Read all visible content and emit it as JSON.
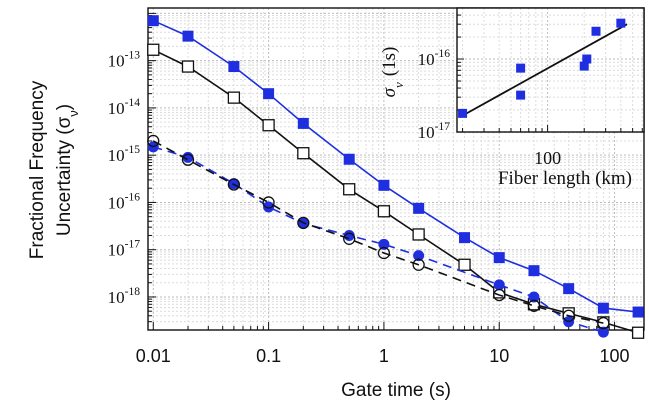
{
  "chart_data": [
    {
      "type": "line",
      "xlabel": "Gate time (s)",
      "ylabel": "Fractional Frequency Uncertainty (σ",
      "ylabel_sub": "ν",
      "ylabel_end": ")",
      "x_scale": "log",
      "y_scale": "log",
      "xlim": [
        0.009,
        180
      ],
      "ylim": [
        2e-19,
        1.3e-12
      ],
      "grid": true,
      "x_ticks": [
        {
          "value": 0.01,
          "label": "0.01"
        },
        {
          "value": 0.1,
          "label": "0.1"
        },
        {
          "value": 1,
          "label": "1"
        },
        {
          "value": 10,
          "label": "10"
        },
        {
          "value": 100,
          "label": "100"
        }
      ],
      "y_ticks": [
        {
          "value": 1e-13,
          "base": "10",
          "exp": "-13"
        },
        {
          "value": 1e-14,
          "base": "10",
          "exp": "-14"
        },
        {
          "value": 1e-15,
          "base": "10",
          "exp": "-15"
        },
        {
          "value": 1e-16,
          "base": "10",
          "exp": "-16"
        },
        {
          "value": 1e-17,
          "base": "10",
          "exp": "-17"
        },
        {
          "value": 1e-18,
          "base": "10",
          "exp": "-18"
        }
      ],
      "series": [
        {
          "color": "#1f2fe0",
          "marker": "filled-square",
          "line": "solid",
          "x": [
            0.01,
            0.02,
            0.05,
            0.1,
            0.2,
            0.5,
            1,
            2,
            5,
            10,
            20,
            40,
            80,
            160
          ],
          "y": [
            7e-13,
            3.3e-13,
            7.5e-14,
            2e-14,
            4.7e-15,
            8.2e-16,
            2.3e-16,
            7.5e-17,
            1.8e-17,
            6.8e-18,
            3.6e-18,
            1.5e-18,
            5.8e-19,
            4.8e-19
          ]
        },
        {
          "color": "#111111",
          "marker": "open-square",
          "line": "solid",
          "x": [
            0.01,
            0.02,
            0.05,
            0.1,
            0.2,
            0.5,
            1,
            2,
            5,
            10,
            20,
            40,
            80,
            160
          ],
          "y": [
            1.7e-13,
            7.5e-14,
            1.65e-14,
            4.3e-15,
            1.1e-15,
            1.9e-16,
            6.5e-17,
            2.1e-17,
            4.8e-18,
            1.25e-18,
            7e-19,
            4.5e-19,
            2.9e-19,
            1.75e-19
          ]
        },
        {
          "color": "#1f2fe0",
          "marker": "filled-circle",
          "line": "dashed",
          "x": [
            0.01,
            0.02,
            0.05,
            0.1,
            0.2,
            0.5,
            1,
            2,
            10,
            20,
            40,
            80
          ],
          "y": [
            1.5e-15,
            9e-16,
            2.5e-16,
            8e-17,
            3.6e-17,
            2e-17,
            1.3e-17,
            7.5e-18,
            1.8e-18,
            1e-18,
            3e-19,
            1.8e-19
          ]
        },
        {
          "color": "#111111",
          "marker": "open-circle",
          "line": "dashed",
          "x": [
            0.01,
            0.02,
            0.05,
            0.1,
            0.2,
            0.5,
            1,
            2,
            10,
            20,
            40,
            80
          ],
          "y": [
            2e-15,
            8e-16,
            2.4e-16,
            1e-16,
            3.7e-17,
            1.7e-17,
            8.5e-18,
            4.8e-18,
            1.1e-18,
            6.5e-19,
            4e-19,
            2.8e-19
          ]
        }
      ]
    },
    {
      "type": "scatter",
      "xlabel": "Fiber length (km)",
      "ylabel": "σ",
      "ylabel_sub": "ν",
      "ylabel_end": "(1s)",
      "x_scale": "log",
      "y_scale": "log",
      "xlim": [
        18,
        620
      ],
      "ylim": [
        1e-17,
        5e-16
      ],
      "grid": true,
      "x_ticks": [
        {
          "value": 100,
          "label": "100"
        }
      ],
      "y_ticks": [
        {
          "value": 1e-16,
          "base": "10",
          "exp": "-16"
        },
        {
          "value": 1e-17,
          "base": "10",
          "exp": "-17"
        }
      ],
      "series": [
        {
          "color": "#1f2fe0",
          "marker": "filled-square",
          "line": "none",
          "x": [
            20,
            60,
            60,
            200,
            210,
            250,
            400
          ],
          "y": [
            1.8e-17,
            3.2e-17,
            7.5e-17,
            8e-17,
            1e-16,
            2.4e-16,
            3.1e-16
          ]
        }
      ],
      "fit_line": {
        "color": "#111111",
        "x": [
          19,
          450
        ],
        "y": [
          1.6e-17,
          3e-16
        ]
      }
    }
  ]
}
